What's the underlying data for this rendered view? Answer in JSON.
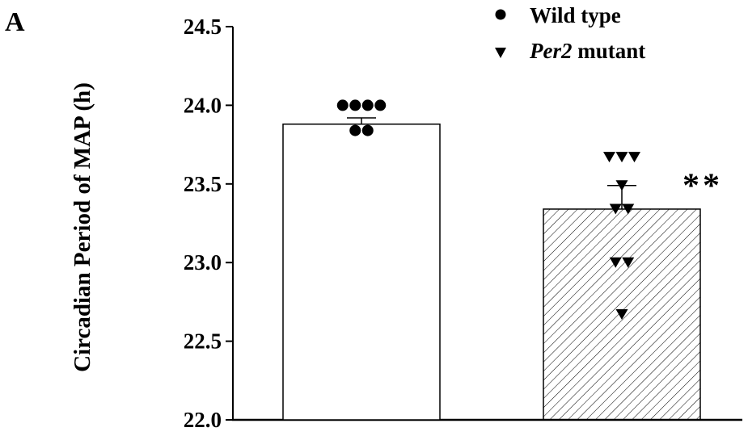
{
  "panel_label": "A",
  "chart_data": {
    "type": "bar",
    "title": "",
    "xlabel": "",
    "ylabel": "Circadian Period of MAP (h)",
    "ylim": [
      22.0,
      24.5
    ],
    "yticks": [
      22.0,
      22.5,
      23.0,
      23.5,
      24.0,
      24.5
    ],
    "ytick_labels": [
      "22.0",
      "22.5",
      "23.0",
      "23.5",
      "24.0",
      "24.5"
    ],
    "grid": false,
    "legend_position": "top-right",
    "categories": [
      "",
      ""
    ],
    "series": [
      {
        "name_prefix": "",
        "name": "Wild type",
        "name_suffix": "",
        "marker": "circle",
        "fill": "solid-white",
        "value": 23.88,
        "sem": 0.04,
        "points": [
          24.0,
          24.0,
          24.0,
          24.0,
          23.84,
          23.84
        ]
      },
      {
        "name_prefix": "Per2",
        "name": "Per2 mutant",
        "name_suffix": " mutant",
        "marker": "triangle-down",
        "fill": "diagonal-hatch",
        "value": 23.34,
        "sem": 0.15,
        "points": [
          23.67,
          23.67,
          23.67,
          23.49,
          23.34,
          23.34,
          23.0,
          23.0,
          22.67
        ]
      }
    ],
    "annotations": [
      {
        "text": "**",
        "series_index": 1
      }
    ],
    "colors": {
      "bar_edge": "#000000",
      "hatch": "#000000",
      "background": "#ffffff"
    }
  }
}
